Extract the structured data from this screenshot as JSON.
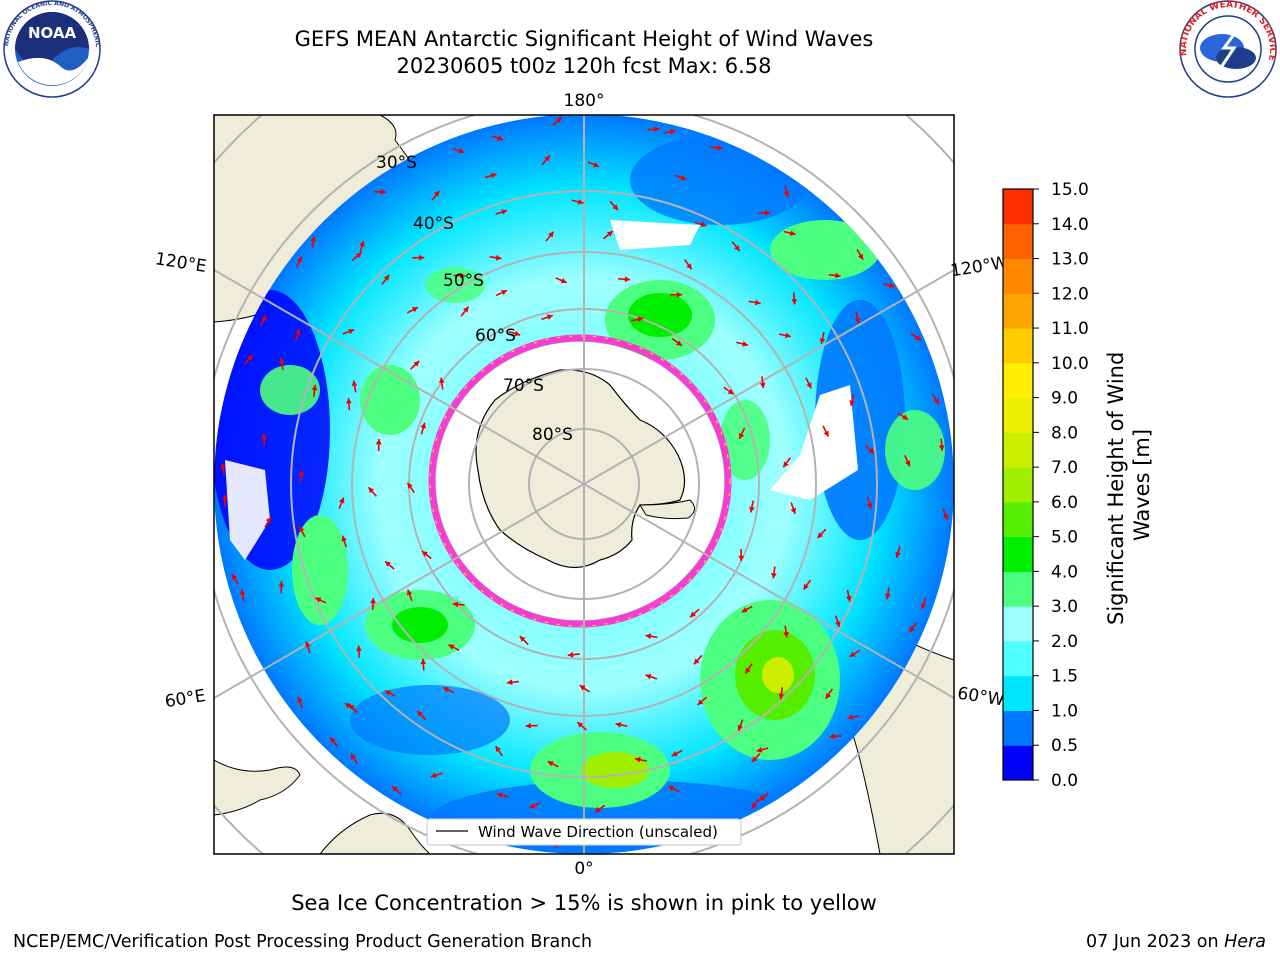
{
  "title": {
    "line1": "GEFS MEAN Antarctic Significant Height of Wind Waves",
    "line2": "20230605 t00z 120h fcst   Max: 6.58"
  },
  "caption": "Sea Ice Concentration > 15% is shown in pink to yellow",
  "footer": {
    "left": "NCEP/EMC/Verification Post Processing Product Generation Branch",
    "date": "07 Jun 2023 on ",
    "host": "Hera"
  },
  "legend": {
    "label": "Wind Wave Direction (unscaled)"
  },
  "logos": {
    "noaa": "NOAA",
    "noaa_ring": "NATIONAL OCEANIC AND ATMOSPHERIC ADMINISTRATION · U.S. DEPARTMENT OF COMMERCE",
    "nws_ring": "NATIONAL WEATHER SERVICE"
  },
  "map": {
    "projection": "south-polar-stereographic",
    "lon_labels": [
      "180°",
      "120°E",
      "120°W",
      "60°E",
      "60°W",
      "0°"
    ],
    "lat_labels": [
      "30°S",
      "40°S",
      "50°S",
      "60°S",
      "70°S",
      "80°S"
    ],
    "colors": {
      "land": "#efedda",
      "ice_outline": "#ff33cc",
      "arrow": "#ee0000",
      "grid": "#b3b3b3"
    }
  },
  "colorbar": {
    "label": "Significant Height of Wind Waves [m]",
    "label_line1": "Significant Height of Wind",
    "label_line2": "Waves [m]",
    "ticks": [
      "0.0",
      "0.5",
      "1.0",
      "1.5",
      "2.0",
      "3.0",
      "4.0",
      "5.0",
      "6.0",
      "7.0",
      "8.0",
      "9.0",
      "10.0",
      "11.0",
      "12.0",
      "13.0",
      "14.0",
      "15.0"
    ],
    "colors": [
      "#0000ff",
      "#0078ff",
      "#00e6ff",
      "#4dffff",
      "#9fffff",
      "#4dff80",
      "#00ee00",
      "#55ee00",
      "#a0ee00",
      "#ccee00",
      "#eeee00",
      "#ffee00",
      "#ffcc00",
      "#ffa500",
      "#ff8800",
      "#ff6000",
      "#ff3000",
      "#ff0000"
    ]
  }
}
